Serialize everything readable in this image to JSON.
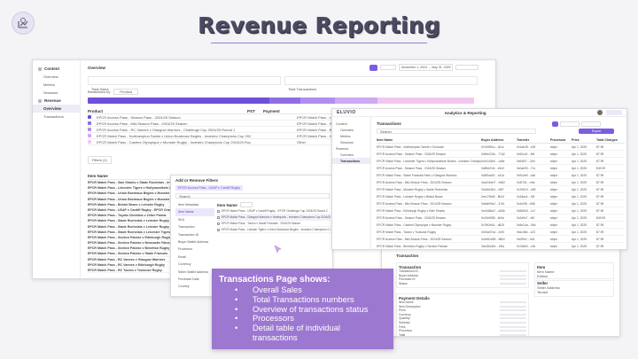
{
  "slide": {
    "title": "Revenue Reporting",
    "callout": {
      "heading": "Transactions Page shows:",
      "bullets": [
        "Overall Sales",
        "Total Transactions numbers",
        "Overview of transactions status",
        "Processors",
        "Detail table of individual transactions"
      ]
    }
  },
  "overview_shot": {
    "sidebar": {
      "sections": [
        {
          "label": "Content",
          "items": [
            "Overview",
            "Metrics",
            "Sessions"
          ]
        },
        {
          "label": "Revenue",
          "items": [
            "Overview",
            "Transactions"
          ]
        }
      ]
    },
    "header": "Overview",
    "date_range": "November 1, 2024 → May 31, 2025",
    "stats": {
      "total_sales": "Total Sales",
      "total_transactions": "Total Transactions"
    },
    "breakdown": {
      "label": "Breakdown by",
      "value": "Product"
    },
    "table": {
      "columns": [
        "Product",
        "PST",
        "Payment"
      ],
      "rows": [
        "EPCR Access Pass - Season Pass - 2024/25 Season",
        "EPCR Access Pass - Mid-Season Pass - 2024/25 Season",
        "EPCR Access Pass - RC Vannes v Glasgow Warriors - Challenge Cup 2024/25 Round 1",
        "EPCR Match Pass - Northampton Saints v Union Bordeaux Begles - Investec Champions Cup 2024/25 Round 4",
        "EPCR Match Pass - Castres Olympique v Munster Rugby - Investec Champions Cup 2024/25 Round of 16"
      ],
      "right_rows": [
        "EPCR Match Pass - Lyon v Cardiff Rugby",
        "EPCR Match Pass - Sale Sharks v Stade",
        "EPCR Match Pass - Benetton Rugby v",
        "EPCR Match Pass - Hollywoodbets Sharks",
        "Other"
      ]
    },
    "filters_button": "Filters (1)",
    "list_header": "Item Name",
    "list_rows": [
      "EPCR Match Pass - Sale Sharks v Stade Rochelais - Investec",
      "EPCR Match Pass - Leicester Tigers v Hollywoodbets Sharks",
      "EPCR Match Pass - Union Bordeaux Begles v Munster",
      "EPCR Match Pass - Union Bordeaux Begles v Munster Rugby",
      "EPCR Match Pass - Bristol Bears v Leinster Rugby",
      "EPCR Match Pass - USAP v Cardiff Rugby - EPCR Challenge",
      "EPCR Match Pass - Toyota Cheetahs v Zebre Parma",
      "EPCR Match Pass - Stade Rochelais v Leinster Rugby",
      "EPCR Match Pass - Stade Rochelais v Leinster Rugby",
      "EPCR Match Pass - Stade Rochelais v Leicester Tigers",
      "EPCR Match Pass - Section Paloise v Edinburgh Rugby",
      "EPCR Match Pass - Section Paloise v Newcastle Falcons",
      "EPCR Match Pass - Section Paloise v Benetton Rugby",
      "EPCR Match Pass - Section Paloise v Stade Francais",
      "EPCR Match Pass - RC Vannes v Glasgow Warriors",
      "EPCR Match Pass - RC Vannes v Edinburgh Rugby",
      "EPCR Match Pass - RC Toulon v Toulouse Rugby"
    ]
  },
  "filters_shot": {
    "title": "Add or Remove Filters",
    "selected_chip": "EPCR Access Pass - USAP v Cardiff Rugby",
    "search_placeholder": "Search",
    "options": [
      "Item Metadata",
      "Item Name",
      "SKU",
      "Transaction",
      "Transaction ID",
      "Buyer Wallet Address",
      "Processor",
      "Email",
      "Currency",
      "Seller Wallet Address",
      "Purchase Date",
      "Country"
    ],
    "item_name_label": "Item Name",
    "results": [
      "EPCR Match Pass - USAP v Cardiff Rugby - EPCR Challenge Cup 2024/25 Round 2",
      "EPCR Match Pass - Glasgow Warriors v Harlequins - Investec Champions Cup 2024/25 Round 3",
      "EPCR Match Pass - Toulon v Stade Francais - 2024/25 Season",
      "EPCR Match Pass - Leinster Tigers v Union Bordeaux Begles - Investec Champions Cup 2024/25 Round 4"
    ]
  },
  "transactions_shot": {
    "app_name": "ELUVIO",
    "app_title": "Analytics & Reporting",
    "sidebar": [
      "Content",
      "Overview",
      "Metrics",
      "Sessions",
      "Revenue",
      "Overview",
      "Transactions"
    ],
    "header": "Transactions",
    "search_placeholder": "Search",
    "export_button": "Export",
    "columns": [
      "Item Name",
      "Buyer Address",
      "Transfer",
      "Processor",
      "Price",
      "Total Charges"
    ],
    "rows": [
      {
        "item": "EPCR Match Pass - Northampton Saints v Toulouse",
        "buyer": "0x7d9f51a…4b1c",
        "transfer": "0x1ab45…c09",
        "processor": "stripe",
        "price": "Apr 1, 2025",
        "total": "$7.99"
      },
      {
        "item": "EPCR Access Pass - Season Pass - 2024/25 Season",
        "buyer": "0x9be223c…77a2",
        "transfer": "0x52cd1…8f4",
        "processor": "stripe",
        "price": "Apr 1, 2025",
        "total": "$7.99"
      },
      {
        "item": "EPCR Match Pass - Leicester Tigers v Hollywoodbets Sharks - Investec Champions Cup",
        "buyer": "0x3c118e0…1a9e",
        "transfer": "0x64f07…2bd",
        "processor": "stripe",
        "price": "Apr 1, 2025",
        "total": "$7.99"
      },
      {
        "item": "EPCR Access Pass - Season Pass - 2024/25 Season",
        "buyer": "0x88d21f4…e3c0",
        "transfer": "0x0ae93…71c",
        "processor": "stripe",
        "price": "Apr 1, 2025",
        "total": "$49.99"
      },
      {
        "item": "EPCR Match Pass - Stade Francais Paris v Glasgow Warriors",
        "buyer": "0x5f0aa92…c41d",
        "transfer": "0x9c2e8…4a0",
        "processor": "stripe",
        "price": "Apr 1, 2025",
        "total": "$7.99"
      },
      {
        "item": "EPCR Access Pass - Mid-Season Pass - 2024/25 Season",
        "buyer": "0xa41be07…9d52",
        "transfer": "0x3f7d1…e6b",
        "processor": "stripe",
        "price": "Apr 1, 2025",
        "total": "$7.99"
      },
      {
        "item": "EPCR Match Pass - Munster Rugby v Stade Rochelais",
        "buyer": "0x2d6c3b1…0f87",
        "transfer": "0x7b510…d39",
        "processor": "stripe",
        "price": "Apr 1, 2025",
        "total": "$7.99"
      },
      {
        "item": "EPCR Match Pass - Leinster Rugby v Bristol Bears",
        "buyer": "0xe17f6d9…5b24",
        "transfer": "0x18ac4…92f",
        "processor": "stripe",
        "price": "Apr 1, 2025",
        "total": "$7.99"
      },
      {
        "item": "EPCR Access Pass - Mid-Season Pass - 2024/25 Season",
        "buyer": "0x6ab90c2…37e1",
        "transfer": "0x4e2f6…b58",
        "processor": "stripe",
        "price": "Apr 1, 2025",
        "total": "$7.99"
      },
      {
        "item": "EPCR Match Pass - Edinburgh Rugby v Sale Sharks",
        "buyer": "0xc3d84a7…a06b",
        "transfer": "0x8d0b3…1c7",
        "processor": "stripe",
        "price": "Apr 1, 2025",
        "total": "$7.99"
      },
      {
        "item": "EPCR Access Pass - Season Pass - 2024/25 Season",
        "buyer": "0x10e5f38…6c9a",
        "transfer": "0x2a9c7…f40",
        "processor": "stripe",
        "price": "Apr 1, 2025",
        "total": "$49.99"
      },
      {
        "item": "EPCR Match Pass - Castres Olympique v Munster Rugby",
        "buyer": "0x7fb2e61…d815",
        "transfer": "0x5e14a…08d",
        "processor": "stripe",
        "price": "Apr 1, 2025",
        "total": "$7.99"
      },
      {
        "item": "EPCR Match Pass - Toulon v Toulouse Rugby",
        "buyer": "0x94a07cd…2ef3",
        "transfer": "0x6c38d…a72",
        "processor": "stripe",
        "price": "Apr 1, 2025",
        "total": "$7.99"
      },
      {
        "item": "EPCR Access Pass - Mid-Season Pass - 2024/25 Season",
        "buyer": "0x3e61b95…88c0",
        "transfer": "0x0f9e2…5d1",
        "processor": "stripe",
        "price": "Apr 1, 2025",
        "total": "$7.99"
      },
      {
        "item": "EPCR Match Pass - Benetton Rugby v Section Paloise",
        "buyer": "0xb28d40e…1f6a",
        "transfer": "0x7a6b0…c3e",
        "processor": "stripe",
        "price": "Apr 1, 2025",
        "total": "$7.99"
      }
    ]
  },
  "detail_shot": {
    "header": "Transaction",
    "sections": [
      {
        "label": "Transaction",
        "fields": [
          "Transaction ID",
          "Buyer Address",
          "Purchase ID",
          "Status"
        ]
      },
      {
        "label": "Payment Details",
        "fields": [
          "Item Name",
          "Item Description",
          "Price",
          "Currency",
          "Quantity",
          "Subtotal",
          "Fees",
          "Processor",
          "Total"
        ]
      }
    ],
    "right_sections": [
      {
        "label": "Item",
        "fields": [
          "Item Name",
          "Edition"
        ]
      },
      {
        "label": "Seller",
        "fields": [
          "Seller Address",
          "Tenant"
        ]
      }
    ]
  }
}
